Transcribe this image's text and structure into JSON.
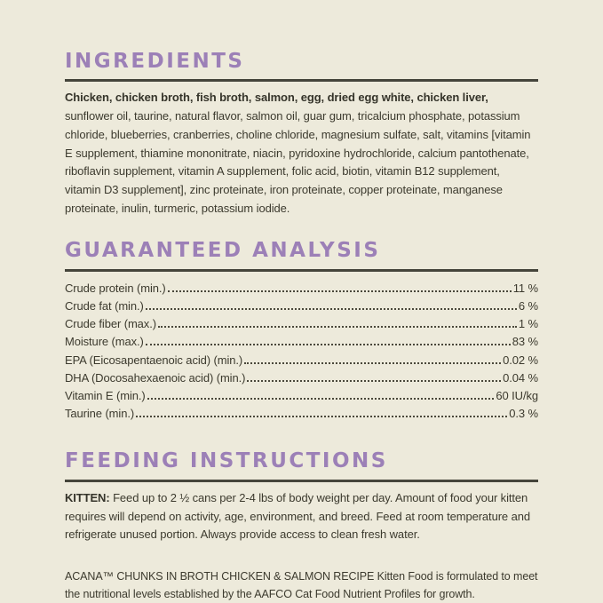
{
  "colors": {
    "background": "#edeadb",
    "heading_purple": "#9c80b7",
    "rule_dark": "#45453b",
    "body_text": "#3c3a2e"
  },
  "ingredients": {
    "title": "INGREDIENTS",
    "bold_lead": "Chicken, chicken broth, fish broth, salmon, egg, dried egg white, chicken liver,",
    "rest": " sunflower oil, taurine, natural flavor, salmon oil, guar gum, tricalcium phosphate, potassium chloride, blueberries, cranberries, choline chloride, magnesium sulfate, salt, vitamins [vitamin E supplement, thiamine mononitrate, niacin, pyridoxine hydrochloride, calcium pantothenate, riboflavin supplement, vitamin A supplement, folic acid, biotin, vitamin B12 supplement, vitamin D3 supplement], zinc proteinate, iron proteinate, copper proteinate, manganese proteinate, inulin, turmeric, potassium iodide."
  },
  "guaranteed_analysis": {
    "title": "GUARANTEED ANALYSIS",
    "rows": [
      {
        "label": "Crude protein (min.)",
        "value": "11 %"
      },
      {
        "label": "Crude fat (min.)",
        "value": "6 %"
      },
      {
        "label": "Crude fiber (max.)",
        "value": "1 %"
      },
      {
        "label": "Moisture (max.)",
        "value": "83 %"
      },
      {
        "label": "EPA (Eicosapentaenoic acid) (min.)",
        "value": "0.02 %"
      },
      {
        "label": "DHA (Docosahexaenoic acid) (min.)",
        "value": "0.04 %"
      },
      {
        "label": "Vitamin E (min.)",
        "value": "60 IU/kg"
      },
      {
        "label": "Taurine (min.)",
        "value": "0.3 %"
      }
    ]
  },
  "feeding_instructions": {
    "title": "FEEDING INSTRUCTIONS",
    "kitten_label": "KITTEN:",
    "kitten_text": " Feed up to 2 ½ cans per 2-4 lbs of body weight per day. Amount of food your kitten requires will depend on activity, age, environment, and breed. Feed at room temperature and refrigerate unused portion. Always provide access to clean fresh water.",
    "aafco_statement": "ACANA™ CHUNKS IN BROTH CHICKEN & SALMON RECIPE Kitten Food is formulated to meet the nutritional levels established by the AAFCO Cat Food Nutrient Profiles for growth."
  }
}
